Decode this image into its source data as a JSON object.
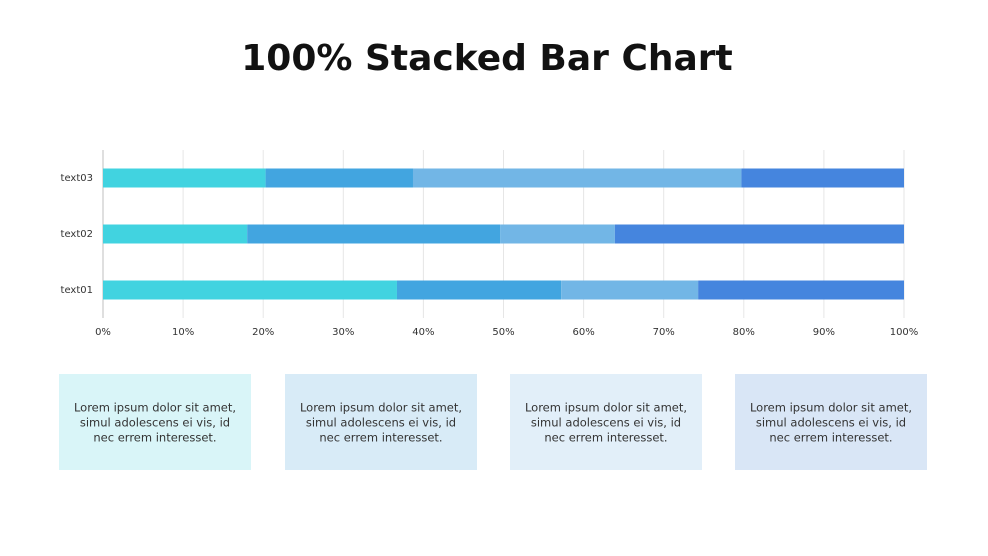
{
  "chart_data": {
    "type": "stacked_bar_horizontal_100",
    "title": "100% Stacked Bar Chart",
    "categories": [
      "text01",
      "text02",
      "text03"
    ],
    "series": [
      {
        "color": "#41d3e0",
        "values": [
          36.7,
          18.0,
          20.3
        ]
      },
      {
        "color": "#42a5e0",
        "values": [
          20.5,
          31.6,
          18.4
        ]
      },
      {
        "color": "#72b6e6",
        "values": [
          17.1,
          14.3,
          41.0
        ]
      },
      {
        "color": "#4585de",
        "values": [
          25.7,
          36.1,
          20.3
        ]
      }
    ],
    "xlim": [
      0,
      100
    ],
    "xticks": [
      {
        "value": 0,
        "label": "0%"
      },
      {
        "value": 10,
        "label": "10%"
      },
      {
        "value": 20,
        "label": "20%"
      },
      {
        "value": 30,
        "label": "30%"
      },
      {
        "value": 40,
        "label": "40%"
      },
      {
        "value": 50,
        "label": "50%"
      },
      {
        "value": 60,
        "label": "60%"
      },
      {
        "value": 70,
        "label": "70%"
      },
      {
        "value": 80,
        "label": "80%"
      },
      {
        "value": 90,
        "label": "90%"
      },
      {
        "value": 100,
        "label": "100%"
      }
    ],
    "grid": true
  },
  "cards": [
    {
      "color": "#d9f5f8",
      "lines": [
        "Lorem ipsum dolor sit amet,",
        "simul adolescens ei vis, id",
        "nec errem interesset."
      ]
    },
    {
      "color": "#d8ebf7",
      "lines": [
        "Lorem ipsum dolor sit amet,",
        "simul adolescens ei vis, id",
        "nec errem interesset."
      ]
    },
    {
      "color": "#e2eff9",
      "lines": [
        "Lorem ipsum dolor sit amet,",
        "simul adolescens ei vis, id",
        "nec errem interesset."
      ]
    },
    {
      "color": "#d9e6f6",
      "lines": [
        "Lorem ipsum dolor sit amet,",
        "simul adolescens ei vis, id",
        "nec errem interesset."
      ]
    }
  ]
}
